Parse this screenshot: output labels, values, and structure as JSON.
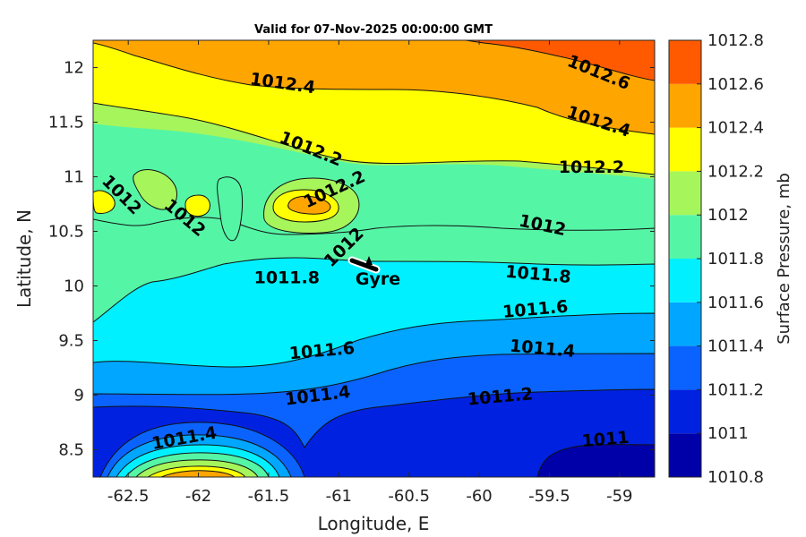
{
  "chart_data": {
    "type": "heatmap",
    "subtype": "filled-contour",
    "title": "Valid for 07-Nov-2025 00:00:00 GMT",
    "xlabel": "Longitude, E",
    "ylabel": "Latitude, N",
    "xlim": [
      -62.75,
      -58.75
    ],
    "ylim": [
      8.25,
      12.25
    ],
    "xticks": [
      "-62.5",
      "-62",
      "-61.5",
      "-61",
      "-60.5",
      "-60",
      "-59.5",
      "-59"
    ],
    "xtick_values": [
      -62.5,
      -62,
      -61.5,
      -61,
      -60.5,
      -60,
      -59.5,
      -59
    ],
    "yticks": [
      "8.5",
      "9",
      "9.5",
      "10",
      "10.5",
      "11",
      "11.5",
      "12"
    ],
    "ytick_values": [
      8.5,
      9,
      9.5,
      10,
      10.5,
      11,
      11.5,
      12
    ],
    "colorbar": {
      "label": "Surface Pressure, mb",
      "levels": [
        1010.8,
        1011,
        1011.2,
        1011.4,
        1011.6,
        1011.8,
        1012,
        1012.2,
        1012.4,
        1012.6,
        1012.8
      ],
      "tick_labels": [
        "1010.8",
        "1011",
        "1011.2",
        "1011.4",
        "1011.6",
        "1011.8",
        "1012",
        "1012.2",
        "1012.4",
        "1012.6",
        "1012.8"
      ],
      "colors": [
        "#0000a8",
        "#0022e0",
        "#0a63ff",
        "#00a6ff",
        "#00f0ff",
        "#55f5a6",
        "#a6f55a",
        "#ffff00",
        "#ffa500",
        "#ff5a00",
        "#ff0000"
      ]
    },
    "contour_labels": [
      {
        "text": "1012.6",
        "lon": -59.15,
        "lat": 11.95,
        "angle": 22
      },
      {
        "text": "1012.4",
        "lon": -61.4,
        "lat": 11.85,
        "angle": 8
      },
      {
        "text": "1012.4",
        "lon": -59.15,
        "lat": 11.5,
        "angle": 18
      },
      {
        "text": "1012.2",
        "lon": -61.2,
        "lat": 11.25,
        "angle": 22
      },
      {
        "text": "1012.2",
        "lon": -59.2,
        "lat": 11.08,
        "angle": 0
      },
      {
        "text": "1012.2",
        "lon": -61.03,
        "lat": 10.88,
        "angle": -25
      },
      {
        "text": "1012",
        "lon": -62.55,
        "lat": 10.83,
        "angle": 45
      },
      {
        "text": "1012",
        "lon": -62.1,
        "lat": 10.62,
        "angle": 40
      },
      {
        "text": "1012",
        "lon": -60.96,
        "lat": 10.35,
        "angle": -45
      },
      {
        "text": "1012",
        "lon": -59.55,
        "lat": 10.55,
        "angle": 12
      },
      {
        "text": "1011.8",
        "lon": -61.37,
        "lat": 10.07,
        "angle": 0
      },
      {
        "text": "1011.8",
        "lon": -59.58,
        "lat": 10.1,
        "angle": 5
      },
      {
        "text": "1011.6",
        "lon": -59.6,
        "lat": 9.78,
        "angle": -5
      },
      {
        "text": "1011.6",
        "lon": -61.12,
        "lat": 9.4,
        "angle": -5
      },
      {
        "text": "1011.4",
        "lon": -59.55,
        "lat": 9.42,
        "angle": 5
      },
      {
        "text": "1011.4",
        "lon": -61.15,
        "lat": 8.99,
        "angle": -7
      },
      {
        "text": "1011.4",
        "lon": -62.1,
        "lat": 8.6,
        "angle": -10
      },
      {
        "text": "1011.2",
        "lon": -59.85,
        "lat": 8.98,
        "angle": -5
      },
      {
        "text": "1011",
        "lon": -59.1,
        "lat": 8.59,
        "angle": -5
      }
    ],
    "marker": {
      "label": "Gyre",
      "lon": -60.7,
      "lat": 10.1
    }
  }
}
